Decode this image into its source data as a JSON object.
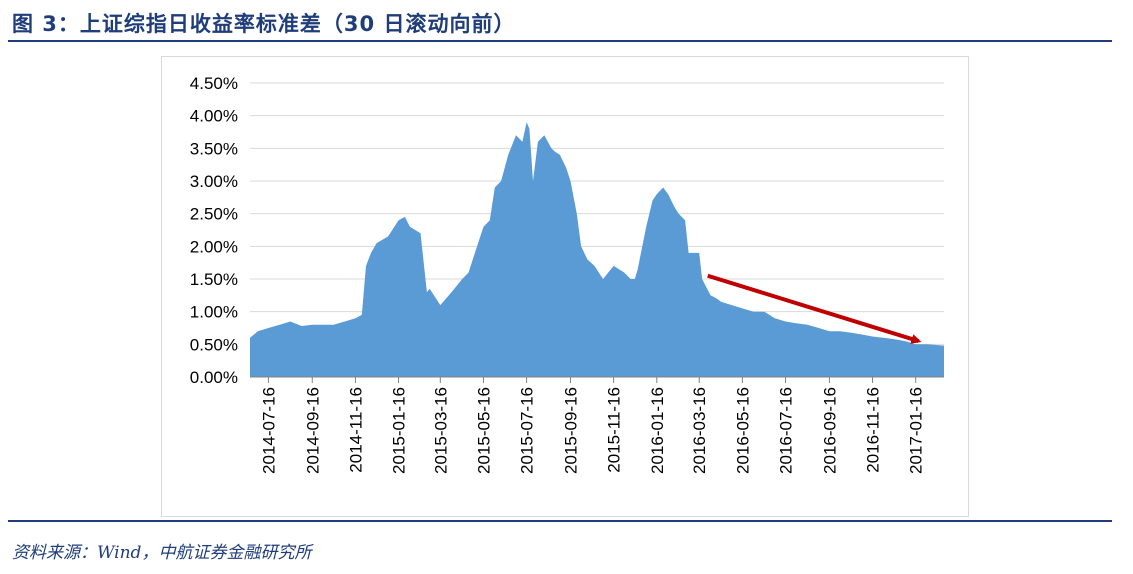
{
  "header": {
    "title": "图 3：上证综指日收益率标准差（30 日滚动向前）"
  },
  "footer": {
    "source": "资料来源：Wind，中航证券金融研究所"
  },
  "colors": {
    "area": "#5b9bd5",
    "arrow": "#c00000",
    "title": "#1f3d7a"
  },
  "chart_data": {
    "type": "area",
    "title": "",
    "xlabel": "",
    "ylabel": "",
    "ylim": [
      0,
      0.045
    ],
    "yticks": [
      "0.00%",
      "0.50%",
      "1.00%",
      "1.50%",
      "2.00%",
      "2.50%",
      "3.00%",
      "3.50%",
      "4.00%",
      "4.50%"
    ],
    "xticks": [
      "2014-07-16",
      "2014-09-16",
      "2014-11-16",
      "2015-01-16",
      "2015-03-16",
      "2015-05-16",
      "2015-07-16",
      "2015-09-16",
      "2015-11-16",
      "2016-01-16",
      "2016-03-16",
      "2016-05-16",
      "2016-07-16",
      "2016-09-16",
      "2016-11-16",
      "2017-01-16"
    ],
    "x_range": [
      "2014-06-20",
      "2017-02-25"
    ],
    "grid": true,
    "annotation": {
      "type": "arrow",
      "from": [
        "2016-03-28",
        0.0155
      ],
      "to": [
        "2017-01-20",
        0.0055
      ]
    },
    "x": [
      "2014-06-20",
      "2014-07-01",
      "2014-07-16",
      "2014-08-01",
      "2014-08-16",
      "2014-09-01",
      "2014-09-16",
      "2014-10-01",
      "2014-10-16",
      "2014-11-01",
      "2014-11-16",
      "2014-11-25",
      "2014-12-01",
      "2014-12-08",
      "2014-12-16",
      "2015-01-01",
      "2015-01-16",
      "2015-01-25",
      "2015-02-01",
      "2015-02-16",
      "2015-02-25",
      "2015-03-01",
      "2015-03-10",
      "2015-03-16",
      "2015-04-01",
      "2015-04-16",
      "2015-04-25",
      "2015-05-01",
      "2015-05-10",
      "2015-05-16",
      "2015-05-25",
      "2015-06-01",
      "2015-06-10",
      "2015-06-20",
      "2015-07-01",
      "2015-07-10",
      "2015-07-16",
      "2015-07-20",
      "2015-07-25",
      "2015-08-01",
      "2015-08-10",
      "2015-08-20",
      "2015-08-25",
      "2015-09-01",
      "2015-09-10",
      "2015-09-16",
      "2015-09-25",
      "2015-10-01",
      "2015-10-10",
      "2015-10-20",
      "2015-11-01",
      "2015-11-16",
      "2015-12-01",
      "2015-12-10",
      "2015-12-16",
      "2015-12-20",
      "2016-01-01",
      "2016-01-10",
      "2016-01-16",
      "2016-01-25",
      "2016-02-01",
      "2016-02-10",
      "2016-02-16",
      "2016-02-25",
      "2016-03-01",
      "2016-03-10",
      "2016-03-16",
      "2016-03-20",
      "2016-04-01",
      "2016-04-10",
      "2016-04-16",
      "2016-05-01",
      "2016-05-16",
      "2016-06-01",
      "2016-06-16",
      "2016-07-01",
      "2016-07-16",
      "2016-08-01",
      "2016-08-16",
      "2016-09-01",
      "2016-09-16",
      "2016-10-01",
      "2016-10-16",
      "2016-11-01",
      "2016-11-16",
      "2016-12-01",
      "2016-12-16",
      "2017-01-01",
      "2017-01-16",
      "2017-02-01",
      "2017-02-25"
    ],
    "values": [
      0.006,
      0.007,
      0.0075,
      0.008,
      0.0085,
      0.0078,
      0.008,
      0.008,
      0.008,
      0.0085,
      0.009,
      0.0095,
      0.017,
      0.019,
      0.0205,
      0.0215,
      0.024,
      0.0245,
      0.023,
      0.022,
      0.013,
      0.0135,
      0.012,
      0.011,
      0.013,
      0.015,
      0.016,
      0.018,
      0.021,
      0.023,
      0.024,
      0.029,
      0.03,
      0.034,
      0.037,
      0.036,
      0.039,
      0.038,
      0.03,
      0.036,
      0.037,
      0.035,
      0.0345,
      0.034,
      0.032,
      0.03,
      0.025,
      0.02,
      0.018,
      0.017,
      0.015,
      0.017,
      0.016,
      0.015,
      0.015,
      0.0165,
      0.023,
      0.027,
      0.028,
      0.029,
      0.028,
      0.026,
      0.025,
      0.024,
      0.019,
      0.019,
      0.019,
      0.015,
      0.0125,
      0.012,
      0.0115,
      0.011,
      0.0105,
      0.01,
      0.01,
      0.009,
      0.0085,
      0.0082,
      0.008,
      0.0075,
      0.007,
      0.007,
      0.0068,
      0.0065,
      0.0062,
      0.006,
      0.0058,
      0.0055,
      0.005,
      0.005,
      0.0048
    ]
  }
}
